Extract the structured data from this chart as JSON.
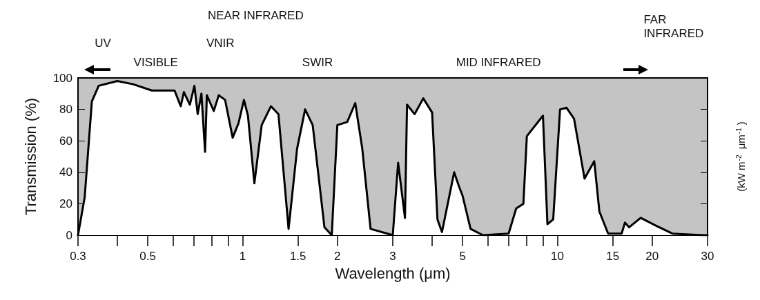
{
  "chart_data": {
    "type": "area",
    "xlabel": "Wavelength (μm)",
    "ylabel": "Transmission (%)",
    "y2label": "(kW m$^{-2}$ μm$^{-1}$)",
    "log": "x",
    "xlim": [
      0.3,
      30
    ],
    "xticks": [
      0.3,
      {
        "value": 0.4,
        "label": null
      },
      0.5,
      {
        "value": 0.6,
        "label": null
      },
      {
        "value": 0.7,
        "label": null
      },
      {
        "value": 0.8,
        "label": null
      },
      {
        "value": 0.9,
        "label": null
      },
      1,
      1.5,
      2,
      3,
      {
        "value": 4,
        "label": null
      },
      5,
      {
        "value": 6,
        "label": null
      },
      {
        "value": 7,
        "label": null
      },
      {
        "value": 8,
        "label": null
      },
      {
        "value": 9,
        "label": null
      },
      10,
      15,
      20,
      30
    ],
    "ylim": [
      0,
      100
    ],
    "yticks": [
      0,
      20,
      40,
      60,
      80,
      100
    ],
    "grid": false,
    "marker": "none",
    "line_style": "solid",
    "series": [
      {
        "color": "#000000",
        "x": [
          0.3,
          0.315,
          0.332,
          0.349,
          0.4,
          0.449,
          0.515,
          0.608,
          0.636,
          0.651,
          0.68,
          0.703,
          0.72,
          0.74,
          0.76,
          0.77,
          0.81,
          0.84,
          0.88,
          0.93,
          0.97,
          1.01,
          1.04,
          1.09,
          1.15,
          1.23,
          1.3,
          1.4,
          1.49,
          1.58,
          1.67,
          1.82,
          1.92,
          2.0,
          2.15,
          2.28,
          2.4,
          2.55,
          3.0,
          3.12,
          3.28,
          3.33,
          3.52,
          3.75,
          4.0,
          4.16,
          4.3,
          4.7,
          4.87,
          5.0,
          5.3,
          5.8,
          7.0,
          7.4,
          7.8,
          8.0,
          9.0,
          9.3,
          9.7,
          10.2,
          10.7,
          11.3,
          12.2,
          13.1,
          13.6,
          14.5,
          16.0,
          16.4,
          16.9,
          18.4,
          20.6,
          23.2,
          29.2,
          30
        ],
        "values": [
          0,
          24,
          85,
          95,
          98,
          96,
          92,
          92,
          82,
          91,
          83,
          95,
          77,
          90,
          53,
          89,
          79,
          89,
          86,
          62,
          71,
          86,
          76,
          33,
          70,
          82,
          77,
          4,
          55,
          80,
          70,
          5,
          0,
          70,
          72,
          84,
          55,
          4,
          0,
          46,
          11,
          83,
          77,
          87,
          78,
          10,
          2,
          40,
          31,
          25,
          4,
          0,
          1,
          17,
          20,
          63,
          76,
          7,
          10,
          80,
          81,
          74,
          36,
          47,
          15,
          1,
          1,
          8,
          5,
          11,
          6,
          1,
          0,
          0
        ]
      }
    ],
    "annotations": [
      "NEAR INFRARED",
      "UV",
      "VISIBLE",
      "VNIR",
      "SWIR",
      "MID INFRARED",
      "FAR INFRARED"
    ]
  }
}
